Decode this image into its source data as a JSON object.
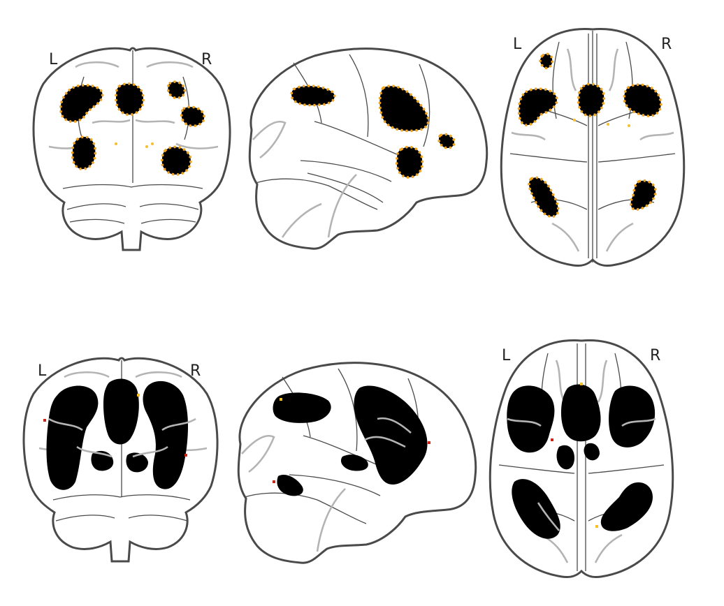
{
  "panels": [
    {
      "id": "top",
      "labels": {
        "left": "L",
        "right": "R"
      }
    },
    {
      "id": "bottom",
      "labels": {
        "left": "L",
        "right": "R"
      }
    }
  ],
  "colors": {
    "outline": "#4a4a4a",
    "sulcus": "#b4b4b4",
    "activation": "#000000",
    "activation_edge": "#f2a51c",
    "activation_edge_red": "#c8281a"
  }
}
